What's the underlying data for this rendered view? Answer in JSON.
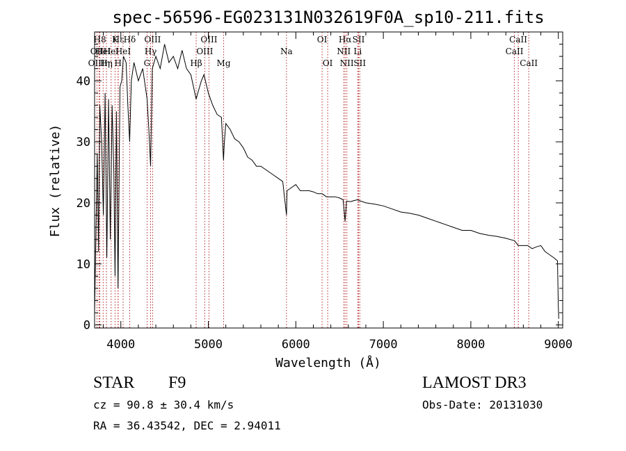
{
  "chart_data": {
    "type": "line",
    "title": "spec-56596-EG023131N032619F0A_sp10-211.fits",
    "xlabel": "Wavelength (Å)",
    "ylabel": "Flux (relative)",
    "xlim": [
      3700,
      9050
    ],
    "ylim": [
      -0.5,
      48
    ],
    "xticks": [
      4000,
      5000,
      6000,
      7000,
      8000,
      9000
    ],
    "xtick_labels": [
      "4000",
      "5000",
      "6000",
      "7000",
      "8000",
      "9000"
    ],
    "yticks": [
      0,
      10,
      20,
      30,
      40
    ],
    "ytick_labels": [
      "0",
      "10",
      "20",
      "30",
      "40"
    ],
    "grid": false,
    "series": [
      {
        "name": "spectrum",
        "x": [
          3700,
          3715,
          3730,
          3745,
          3760,
          3780,
          3800,
          3820,
          3840,
          3860,
          3880,
          3900,
          3920,
          3934,
          3950,
          3968,
          3990,
          4010,
          4030,
          4060,
          4080,
          4101,
          4120,
          4150,
          4200,
          4250,
          4300,
          4320,
          4340,
          4360,
          4380,
          4400,
          4450,
          4500,
          4550,
          4600,
          4650,
          4700,
          4750,
          4800,
          4861,
          4880,
          4920,
          4950,
          5000,
          5050,
          5100,
          5150,
          5173,
          5183,
          5200,
          5250,
          5300,
          5350,
          5400,
          5450,
          5500,
          5550,
          5600,
          5650,
          5700,
          5750,
          5800,
          5850,
          5893,
          5900,
          5950,
          6000,
          6050,
          6100,
          6150,
          6200,
          6250,
          6300,
          6350,
          6400,
          6450,
          6500,
          6540,
          6563,
          6580,
          6620,
          6700,
          6800,
          6900,
          7000,
          7100,
          7200,
          7300,
          7400,
          7500,
          7600,
          7700,
          7800,
          7900,
          8000,
          8100,
          8200,
          8300,
          8400,
          8500,
          8542,
          8600,
          8650,
          8700,
          8750,
          8800,
          8850,
          8900,
          8950,
          8990,
          9000,
          9005
        ],
        "y": [
          2,
          15,
          28,
          12,
          36,
          30,
          18,
          38,
          11,
          37,
          14,
          36,
          25,
          8,
          35,
          6,
          39,
          40,
          44,
          43,
          36,
          30,
          40,
          43,
          40,
          42,
          37,
          32,
          26,
          42,
          43,
          44,
          42,
          46,
          43,
          44,
          42,
          45,
          42,
          41,
          37,
          38,
          40,
          41,
          38,
          36,
          34.5,
          34,
          27,
          30,
          33,
          32,
          30.5,
          30,
          29,
          27.5,
          27,
          26,
          26,
          25.5,
          25,
          24.5,
          24,
          23.5,
          18,
          22,
          22.5,
          23,
          22,
          22,
          22,
          21.8,
          21.5,
          21.5,
          21,
          21,
          21,
          20.8,
          20.5,
          17,
          20.3,
          20.2,
          20.5,
          20,
          19.8,
          19.5,
          19,
          18.5,
          18.3,
          18,
          17.5,
          17,
          16.5,
          16,
          15.5,
          15.5,
          15,
          14.7,
          14.5,
          14.2,
          13.8,
          13,
          13,
          13,
          12.5,
          12.8,
          13,
          12,
          11.5,
          11,
          10.5,
          3,
          1
        ]
      }
    ],
    "lines": [
      {
        "w": 3727,
        "label": "OII",
        "row": 2
      },
      {
        "w": 3750,
        "label": "OIIIη",
        "row": 3
      },
      {
        "w": 3760,
        "label": "H8",
        "row": 1
      },
      {
        "w": 3798,
        "label": "HeI",
        "row": 2
      },
      {
        "w": 3835,
        "label": "Hη",
        "row": 3
      },
      {
        "w": 3889,
        "label": "HeI",
        "row": 2
      },
      {
        "w": 3934,
        "label": "K",
        "row": 1
      },
      {
        "w": 3968,
        "label": "H",
        "row": 3
      },
      {
        "w": 3970,
        "label": "Hε",
        "row": 1
      },
      {
        "w": 4026,
        "label": "HeI",
        "row": 2
      },
      {
        "w": 4101,
        "label": "Hδ",
        "row": 1
      },
      {
        "w": 4300,
        "label": "G",
        "row": 3
      },
      {
        "w": 4340,
        "label": "Hγ",
        "row": 2
      },
      {
        "w": 4363,
        "label": "OIII",
        "row": 1
      },
      {
        "w": 4861,
        "label": "Hβ",
        "row": 3
      },
      {
        "w": 4959,
        "label": "OIII",
        "row": 2
      },
      {
        "w": 5007,
        "label": "OIII",
        "row": 1
      },
      {
        "w": 5175,
        "label": "Mg",
        "row": 3
      },
      {
        "w": 5893,
        "label": "Na",
        "row": 2
      },
      {
        "w": 6300,
        "label": "OI",
        "row": 1
      },
      {
        "w": 6364,
        "label": "OI",
        "row": 3
      },
      {
        "w": 6548,
        "label": "NII",
        "row": 2
      },
      {
        "w": 6563,
        "label": "Hα",
        "row": 1
      },
      {
        "w": 6583,
        "label": "NII",
        "row": 3
      },
      {
        "w": 6707,
        "label": "Li",
        "row": 2
      },
      {
        "w": 6717,
        "label": "SII",
        "row": 1
      },
      {
        "w": 6731,
        "label": "SII",
        "row": 3
      },
      {
        "w": 8498,
        "label": "CaII",
        "row": 2
      },
      {
        "w": 8542,
        "label": "CaII",
        "row": 1
      },
      {
        "w": 8662,
        "label": "CaII",
        "row": 3
      }
    ]
  },
  "info": {
    "object_class": "STAR",
    "subclass": "F9",
    "survey": "LAMOST DR3",
    "cz": "cz = 90.8 ± 30.4 km/s",
    "obs_date": "Obs-Date: 20131030",
    "radec": "RA =  36.43542, DEC =   2.94011"
  },
  "colors": {
    "spectrum": "#000000",
    "line_marker": "#b22222",
    "axis": "#000000"
  }
}
